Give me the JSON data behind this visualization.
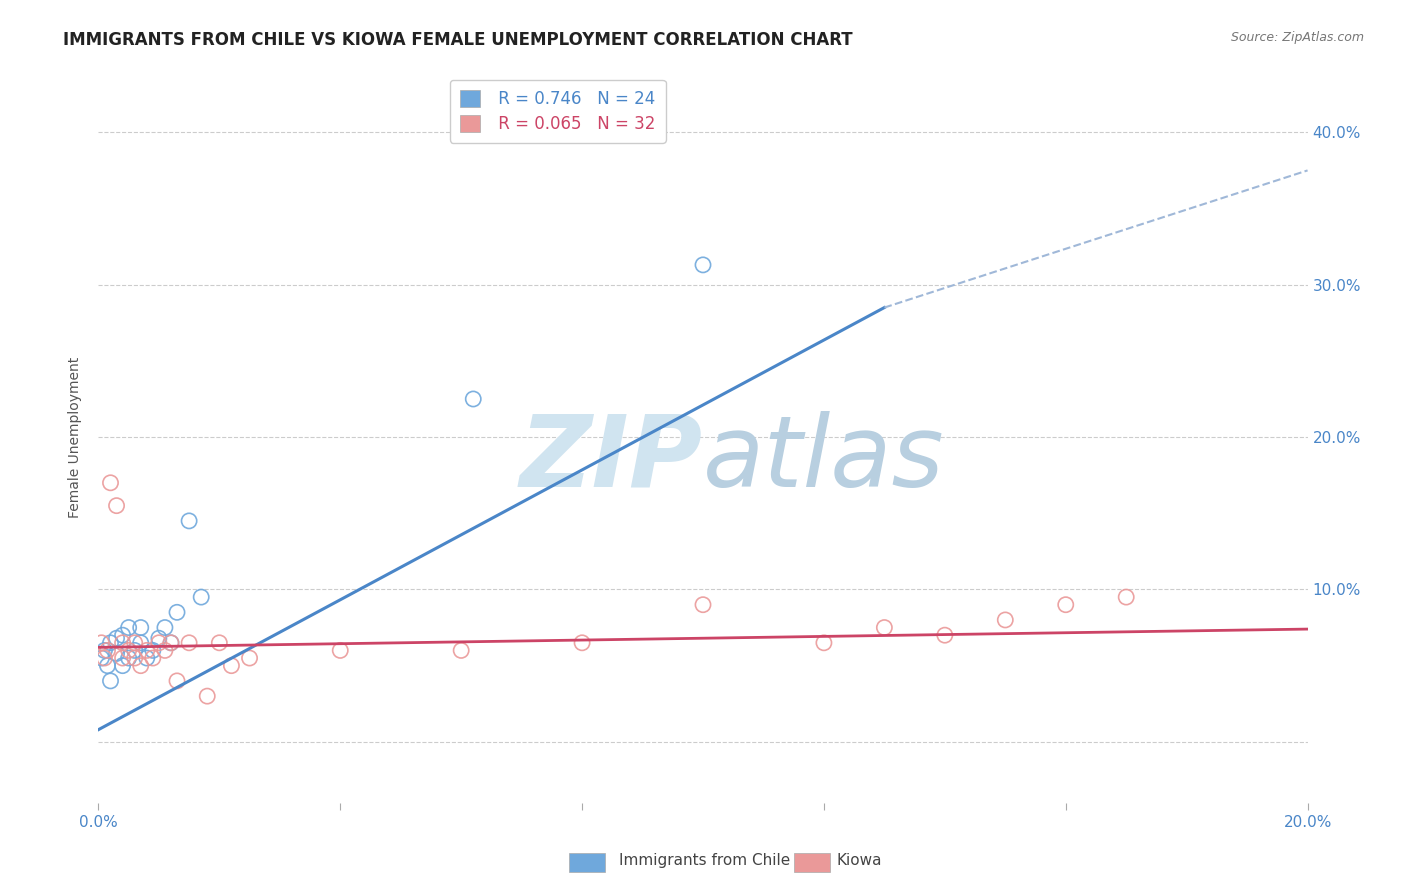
{
  "title": "IMMIGRANTS FROM CHILE VS KIOWA FEMALE UNEMPLOYMENT CORRELATION CHART",
  "source_text": "Source: ZipAtlas.com",
  "ylabel": "Female Unemployment",
  "xlim": [
    0.0,
    0.2
  ],
  "ylim": [
    -0.04,
    0.44
  ],
  "xticks": [
    0.0,
    0.04,
    0.08,
    0.12,
    0.16,
    0.2
  ],
  "xtick_labels": [
    "0.0%",
    "",
    "",
    "",
    "",
    "20.0%"
  ],
  "yticks": [
    0.0,
    0.1,
    0.2,
    0.3,
    0.4
  ],
  "ytick_labels": [
    "",
    "10.0%",
    "20.0%",
    "30.0%",
    "40.0%"
  ],
  "legend_blue_label": "Immigrants from Chile",
  "legend_pink_label": "Kiowa",
  "legend_r_blue": "R = 0.746",
  "legend_n_blue": "N = 24",
  "legend_r_pink": "R = 0.065",
  "legend_n_pink": "N = 32",
  "blue_color": "#6fa8dc",
  "pink_color": "#ea9999",
  "blue_line_color": "#4a86c8",
  "pink_line_color": "#cc4466",
  "dashed_line_color": "#a0b8d8",
  "watermark_color": "#d0e4f0",
  "background_color": "#ffffff",
  "grid_color": "#cccccc",
  "blue_scatter_x": [
    0.0005,
    0.001,
    0.0015,
    0.002,
    0.002,
    0.003,
    0.003,
    0.004,
    0.004,
    0.005,
    0.005,
    0.006,
    0.007,
    0.007,
    0.008,
    0.009,
    0.01,
    0.011,
    0.012,
    0.013,
    0.015,
    0.017,
    0.062,
    0.1
  ],
  "blue_scatter_y": [
    0.055,
    0.06,
    0.05,
    0.065,
    0.04,
    0.058,
    0.068,
    0.05,
    0.07,
    0.055,
    0.075,
    0.06,
    0.065,
    0.075,
    0.055,
    0.06,
    0.068,
    0.075,
    0.065,
    0.085,
    0.145,
    0.095,
    0.225,
    0.313
  ],
  "pink_scatter_x": [
    0.0005,
    0.001,
    0.0015,
    0.002,
    0.003,
    0.004,
    0.004,
    0.005,
    0.006,
    0.006,
    0.007,
    0.008,
    0.009,
    0.01,
    0.011,
    0.012,
    0.013,
    0.015,
    0.018,
    0.02,
    0.022,
    0.025,
    0.04,
    0.06,
    0.08,
    0.1,
    0.12,
    0.13,
    0.14,
    0.15,
    0.16,
    0.17
  ],
  "pink_scatter_y": [
    0.065,
    0.055,
    0.06,
    0.17,
    0.155,
    0.055,
    0.065,
    0.06,
    0.055,
    0.065,
    0.05,
    0.06,
    0.055,
    0.065,
    0.06,
    0.065,
    0.04,
    0.065,
    0.03,
    0.065,
    0.05,
    0.055,
    0.06,
    0.06,
    0.065,
    0.09,
    0.065,
    0.075,
    0.07,
    0.08,
    0.09,
    0.095
  ],
  "blue_trend_x": [
    0.0,
    0.13
  ],
  "blue_trend_y": [
    0.008,
    0.285
  ],
  "pink_trend_x": [
    0.0,
    0.2
  ],
  "pink_trend_y": [
    0.062,
    0.074
  ],
  "dashed_trend_x": [
    0.13,
    0.2
  ],
  "dashed_trend_y": [
    0.285,
    0.375
  ],
  "title_fontsize": 12,
  "axis_label_fontsize": 10,
  "tick_fontsize": 11,
  "legend_fontsize": 12,
  "scatter_size": 120,
  "scatter_linewidth": 1.2
}
